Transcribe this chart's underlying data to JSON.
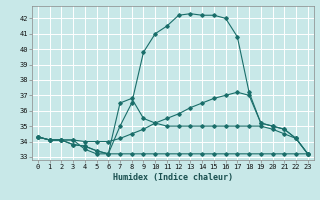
{
  "xlabel": "Humidex (Indice chaleur)",
  "background_color": "#c8e8e8",
  "grid_color": "#ffffff",
  "line_color": "#1a6e6a",
  "xlim": [
    -0.5,
    23.5
  ],
  "ylim": [
    32.8,
    42.8
  ],
  "yticks": [
    33,
    34,
    35,
    36,
    37,
    38,
    39,
    40,
    41,
    42
  ],
  "xticks": [
    0,
    1,
    2,
    3,
    4,
    5,
    6,
    7,
    8,
    9,
    10,
    11,
    12,
    13,
    14,
    15,
    16,
    17,
    18,
    19,
    20,
    21,
    22,
    23
  ],
  "curves": [
    {
      "x": [
        0,
        1,
        2,
        3,
        4,
        5,
        6,
        7,
        8,
        9,
        10,
        11,
        12,
        13,
        14,
        15,
        16,
        17,
        18,
        19,
        20,
        21,
        22,
        23
      ],
      "y": [
        34.3,
        34.1,
        34.1,
        34.1,
        33.5,
        33.2,
        33.2,
        35.0,
        36.5,
        39.8,
        41.0,
        41.5,
        42.2,
        42.3,
        42.2,
        42.2,
        42.0,
        40.8,
        37.2,
        35.2,
        35.0,
        34.8,
        34.2,
        33.2
      ]
    },
    {
      "x": [
        0,
        1,
        2,
        3,
        4,
        5,
        6,
        7,
        8,
        9,
        10,
        11,
        12,
        13,
        14,
        15,
        16,
        17,
        18,
        19,
        20,
        21,
        22,
        23
      ],
      "y": [
        34.3,
        34.1,
        34.1,
        34.1,
        34.0,
        34.0,
        34.0,
        34.2,
        34.5,
        34.8,
        35.2,
        35.5,
        35.8,
        36.2,
        36.5,
        36.8,
        37.0,
        37.2,
        37.0,
        35.2,
        35.0,
        34.8,
        34.2,
        33.2
      ]
    },
    {
      "x": [
        0,
        1,
        2,
        3,
        4,
        5,
        6,
        7,
        8,
        9,
        10,
        11,
        12,
        13,
        14,
        15,
        16,
        17,
        18,
        19,
        20,
        21,
        22,
        23
      ],
      "y": [
        34.3,
        34.1,
        34.1,
        33.8,
        33.7,
        33.4,
        33.2,
        33.2,
        33.2,
        33.2,
        33.2,
        33.2,
        33.2,
        33.2,
        33.2,
        33.2,
        33.2,
        33.2,
        33.2,
        33.2,
        33.2,
        33.2,
        33.2,
        33.2
      ]
    },
    {
      "x": [
        0,
        1,
        2,
        3,
        4,
        5,
        6,
        7,
        8,
        9,
        10,
        11,
        12,
        13,
        14,
        15,
        16,
        17,
        18,
        19,
        20,
        21,
        22,
        23
      ],
      "y": [
        34.3,
        34.1,
        34.1,
        33.8,
        33.7,
        33.4,
        33.2,
        36.5,
        36.8,
        35.5,
        35.2,
        35.0,
        35.0,
        35.0,
        35.0,
        35.0,
        35.0,
        35.0,
        35.0,
        35.0,
        34.8,
        34.5,
        34.2,
        33.2
      ]
    }
  ]
}
